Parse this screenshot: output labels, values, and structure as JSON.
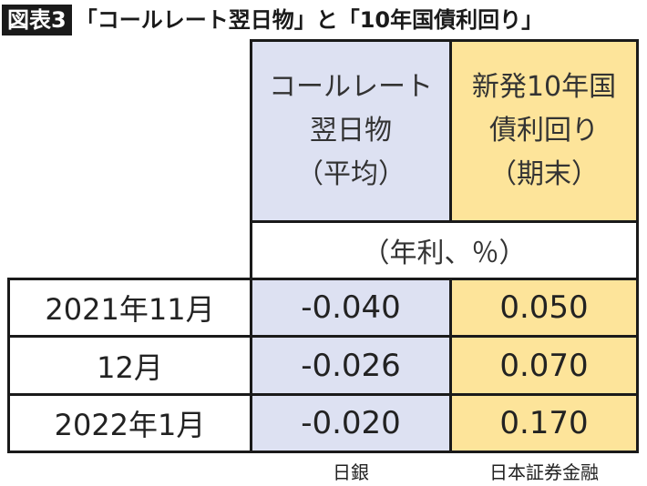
{
  "title": {
    "badge": "図表3",
    "text": "「コールレート翌日物」と「10年国債利回り」"
  },
  "header": {
    "col1": [
      "コールレート",
      "翌日物",
      "（平均）"
    ],
    "col2": [
      "新発10年国",
      "債利回り",
      "（期末）"
    ],
    "unit": "（年利、％）"
  },
  "rows": [
    {
      "label": "2021年11月",
      "call_rate": "-0.040",
      "jgb10y": "0.050"
    },
    {
      "label": "12月",
      "call_rate": "-0.026",
      "jgb10y": "0.070"
    },
    {
      "label": "2022年1月",
      "call_rate": "-0.020",
      "jgb10y": "0.170"
    }
  ],
  "sources": {
    "col1": "日銀",
    "col2": "日本証券金融"
  },
  "colors": {
    "call_rate_column": "#dde1f2",
    "jgb_column": "#fde49a"
  }
}
